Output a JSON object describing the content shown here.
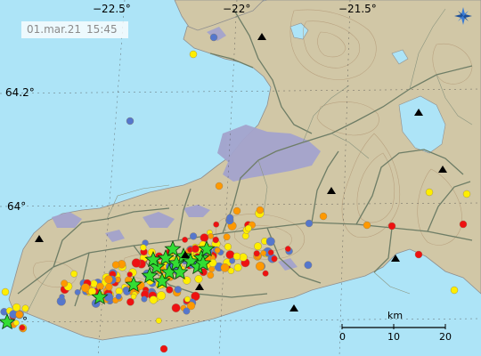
{
  "timestamp": {
    "date": "01.mar.21",
    "time": "15:45"
  },
  "longitude_labels": [
    "−22.5°",
    "−22°",
    "−21.5°"
  ],
  "latitude_labels": [
    "64.2°",
    "64°",
    "°"
  ],
  "scale_bar": {
    "unit": "km",
    "ticks": [
      "0",
      "10",
      "20"
    ]
  },
  "icons": {
    "compass": "compass-rose-icon",
    "volcano": "triangle-peak-icon",
    "large_quake": "green-star-icon"
  },
  "colors": {
    "sea": "#ade4f7",
    "land": "#d1c7a6",
    "lava": "#a3a3cc",
    "roads": "#6e7d66",
    "quake_recent": "#ee1111",
    "quake_hours": "#ff9900",
    "quake_day": "#ffee00",
    "quake_older": "#5577cc",
    "large_quake": "#33dd33"
  }
}
